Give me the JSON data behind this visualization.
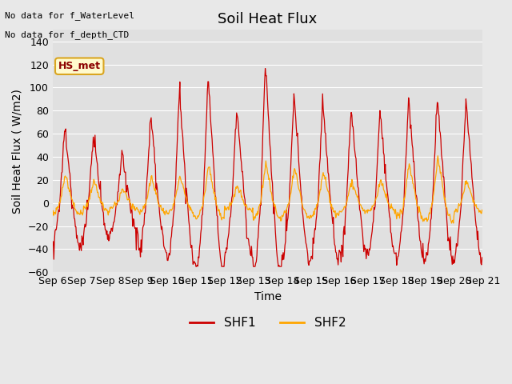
{
  "title": "Soil Heat Flux",
  "xlabel": "Time",
  "ylabel": "Soil Heat Flux ( W/m2)",
  "ylim": [
    -60,
    150
  ],
  "yticks": [
    -60,
    -40,
    -20,
    0,
    20,
    40,
    60,
    80,
    100,
    120,
    140
  ],
  "xtick_labels": [
    "Sep 6",
    "Sep 7",
    "Sep 8",
    "Sep 9",
    "Sep 10",
    "Sep 11",
    "Sep 12",
    "Sep 13",
    "Sep 14",
    "Sep 15",
    "Sep 16",
    "Sep 17",
    "Sep 18",
    "Sep 19",
    "Sep 20",
    "Sep 21"
  ],
  "annotation_lines": [
    "No data for f_WaterLevel",
    "No data for f_depth_CTD"
  ],
  "hs_met_label": "HS_met",
  "legend_entries": [
    "SHF1",
    "SHF2"
  ],
  "shf1_color": "#CC0000",
  "shf2_color": "#FFA500",
  "background_color": "#E8E8E8",
  "plot_bg_color": "#E0E0E0",
  "grid_color": "#FFFFFF",
  "title_fontsize": 13,
  "label_fontsize": 10,
  "tick_fontsize": 9
}
